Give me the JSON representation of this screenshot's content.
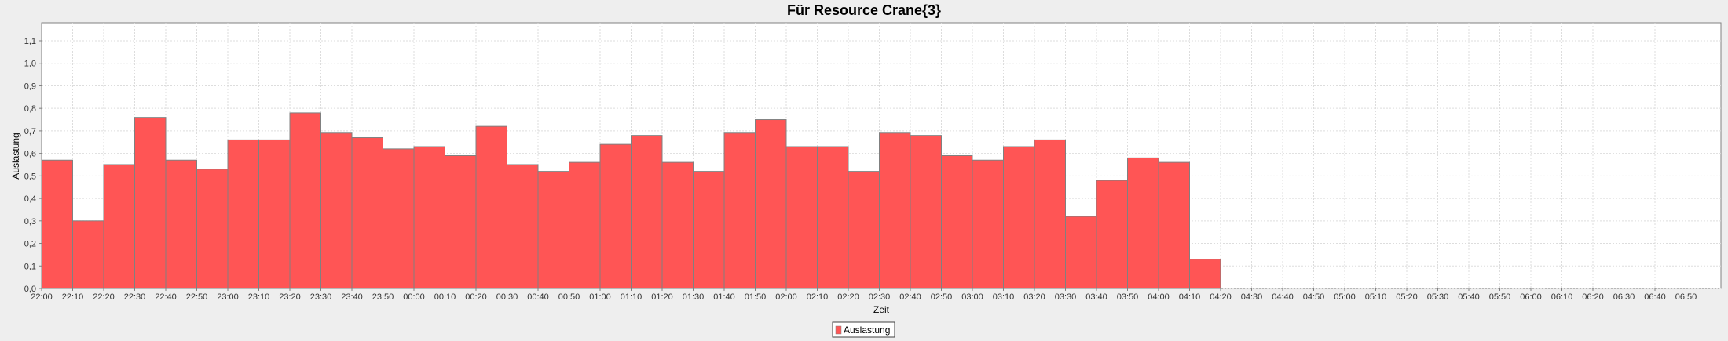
{
  "chart_data": {
    "type": "bar",
    "title": "Für Resource Crane{3}",
    "xlabel": "Zeit",
    "ylabel": "Auslastung",
    "ylim": [
      0,
      1.18
    ],
    "yticks": [
      "0,0",
      "0,1",
      "0,2",
      "0,3",
      "0,4",
      "0,5",
      "0,6",
      "0,7",
      "0,8",
      "0,9",
      "1,0",
      "1,1"
    ],
    "xticks": [
      "22:00",
      "22:10",
      "22:20",
      "22:30",
      "22:40",
      "22:50",
      "23:00",
      "23:10",
      "23:20",
      "23:30",
      "23:40",
      "23:50",
      "00:00",
      "00:10",
      "00:20",
      "00:30",
      "00:40",
      "00:50",
      "01:00",
      "01:10",
      "01:20",
      "01:30",
      "01:40",
      "01:50",
      "02:00",
      "02:10",
      "02:20",
      "02:30",
      "02:40",
      "02:50",
      "03:00",
      "03:10",
      "03:20",
      "03:30",
      "03:40",
      "03:50",
      "04:00",
      "04:10",
      "04:20",
      "04:30",
      "04:40",
      "04:50",
      "05:00",
      "05:10",
      "05:20",
      "05:30",
      "05:40",
      "05:50",
      "06:00",
      "06:10",
      "06:20",
      "06:30",
      "06:40",
      "06:50"
    ],
    "xrange_minutes_span": 540,
    "grid": true,
    "legend_position": "bottom-center",
    "bar_color": "#ff5555",
    "series": [
      {
        "name": "Auslastung",
        "values": [
          0.57,
          0.3,
          0.55,
          0.76,
          0.57,
          0.53,
          0.66,
          0.66,
          0.78,
          0.69,
          0.67,
          0.62,
          0.63,
          0.59,
          0.72,
          0.55,
          0.52,
          0.56,
          0.64,
          0.68,
          0.56,
          0.52,
          0.69,
          0.75,
          0.63,
          0.63,
          0.52,
          0.69,
          0.68,
          0.59,
          0.57,
          0.63,
          0.66,
          0.32,
          0.48,
          0.58,
          0.56,
          0.13
        ]
      }
    ]
  },
  "legend": {
    "label": "Auslastung"
  }
}
